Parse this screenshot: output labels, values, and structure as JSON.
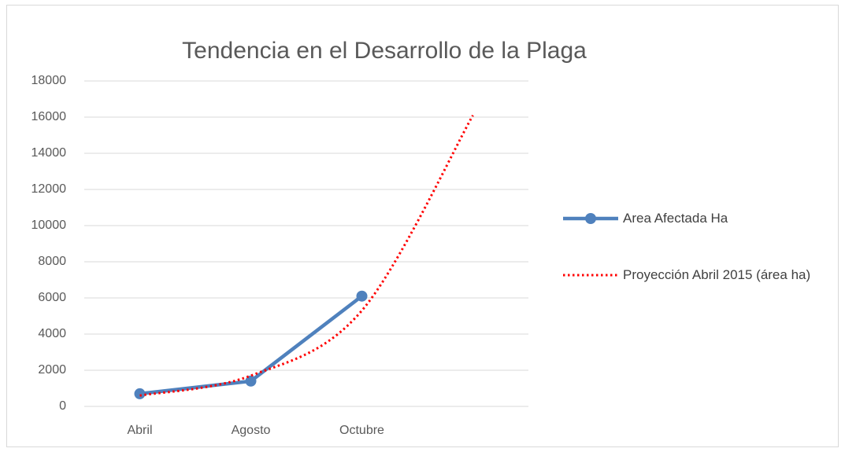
{
  "chart_data": {
    "type": "line",
    "title": "Tendencia en el Desarrollo de la Plaga",
    "categories": [
      "Abril",
      "Agosto",
      "Octubre",
      null
    ],
    "series": [
      {
        "name": "Area Afectada Ha",
        "color": "#4f81bd",
        "values": [
          700,
          1400,
          6100,
          null
        ]
      },
      {
        "name": "Proyección Abril 2015 (área ha)",
        "color": "#ff0000",
        "dotted": true,
        "smooth": true,
        "values": [
          600,
          1700,
          5300,
          16100
        ]
      }
    ],
    "ylim": [
      0,
      18000
    ],
    "yticks": [
      0,
      2000,
      4000,
      6000,
      8000,
      10000,
      12000,
      14000,
      16000,
      18000
    ],
    "grid": true,
    "legend": "right"
  }
}
